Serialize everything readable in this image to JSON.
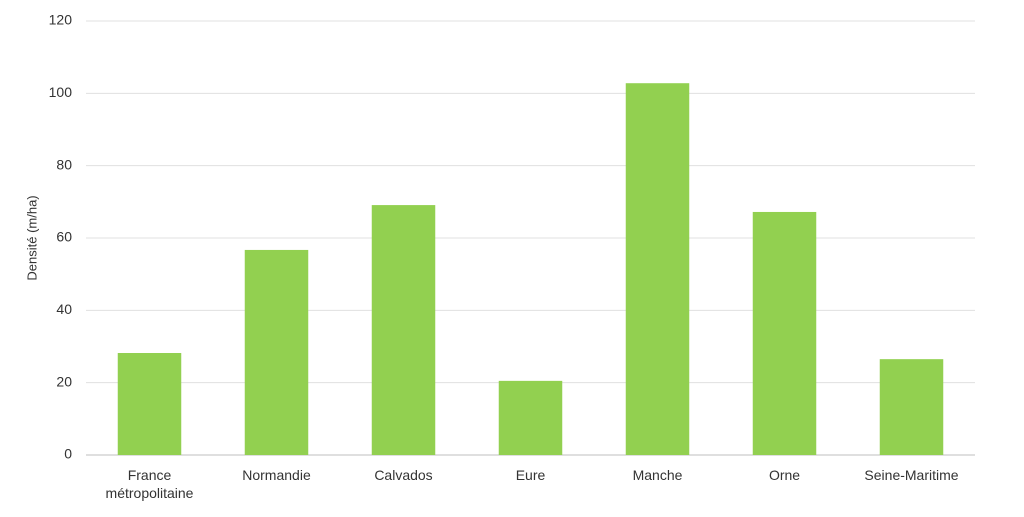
{
  "chart_data": {
    "type": "bar",
    "y_label": "Densité (m/ha)",
    "categories": [
      "France métropolitaine",
      "Normandie",
      "Calvados",
      "Eure",
      "Manche",
      "Orne",
      "Seine-Maritime"
    ],
    "values": [
      28.2,
      56.7,
      69.1,
      20.5,
      102.8,
      67.2,
      26.5
    ],
    "color": "#92d050",
    "ylim": [
      0,
      120
    ],
    "yticks": [
      0,
      20,
      40,
      60,
      80,
      100,
      120
    ],
    "grid": true
  }
}
